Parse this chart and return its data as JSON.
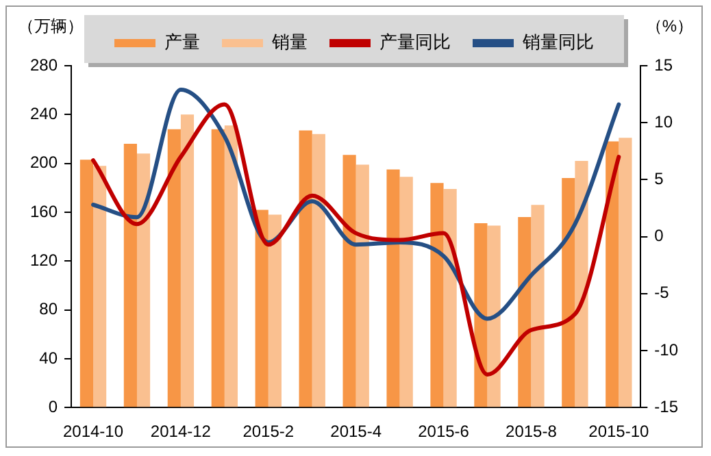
{
  "chart_data": {
    "type": "bar",
    "ylabel": "（万辆）",
    "y2label": "（%）",
    "categories": [
      "2014-10",
      null,
      "2014-12",
      null,
      "2015-2",
      null,
      "2015-4",
      null,
      "2015-6",
      null,
      "2015-8",
      null,
      "2015-10"
    ],
    "series": [
      {
        "name": "产量",
        "color": "#f79646",
        "values": [
          203,
          216,
          228,
          228,
          162,
          227,
          207,
          195,
          184,
          151,
          156,
          188,
          218
        ]
      },
      {
        "name": "销量",
        "color": "#fac090",
        "values": [
          198,
          208,
          240,
          231,
          158,
          224,
          199,
          189,
          179,
          149,
          166,
          202,
          221
        ]
      },
      {
        "name": "产量同比",
        "type": "line",
        "axis": "y2",
        "color": "#c00000",
        "values": [
          6.7,
          1.1,
          7.0,
          11.6,
          -0.7,
          3.6,
          0.3,
          -0.3,
          0.3,
          -12.1,
          -8.2,
          -6.8,
          7.0
        ]
      },
      {
        "name": "销量同比",
        "type": "line",
        "axis": "y2",
        "color": "#254f85",
        "values": [
          2.8,
          1.7,
          12.9,
          8.8,
          -0.5,
          3.1,
          -0.7,
          -0.5,
          -1.7,
          -7.2,
          -3.4,
          1.1,
          11.6
        ]
      }
    ],
    "ylim": [
      0,
      280
    ],
    "yticks": [
      0,
      40,
      80,
      120,
      160,
      200,
      240,
      280
    ],
    "y2lim": [
      -15,
      15
    ],
    "y2ticks": [
      -15,
      -10,
      -5,
      0,
      5,
      10,
      15
    ],
    "grid": false,
    "legend": "top",
    "marker": "none",
    "line_style": "solid"
  }
}
